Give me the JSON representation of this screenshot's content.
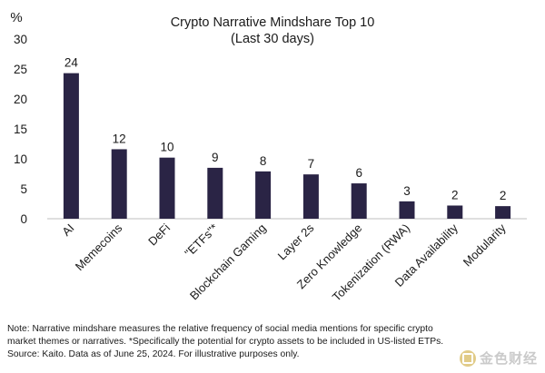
{
  "chart_data": {
    "type": "bar",
    "title": "Crypto Narrative Mindshare Top 10",
    "subtitle": "(Last 30 days)",
    "ylabel": "%",
    "xlabel": "",
    "ylim": [
      0,
      30
    ],
    "yticks": [
      0,
      5,
      10,
      15,
      20,
      25,
      30
    ],
    "categories": [
      "AI",
      "Memecoins",
      "DeFi",
      "\"ETFs\"*",
      "Blockchain Gaming",
      "Layer 2s",
      "Zero Knowledge",
      "Tokenization (RWA)",
      "Data Availability",
      "Modularity"
    ],
    "values": [
      24.3,
      11.6,
      10.2,
      8.5,
      7.9,
      7.4,
      5.9,
      2.9,
      2.2,
      2.1
    ],
    "data_labels": [
      "24",
      "12",
      "10",
      "9",
      "8",
      "7",
      "6",
      "3",
      "2",
      "2"
    ],
    "bar_color": "#2a2445",
    "grid": false,
    "legend": "none"
  },
  "notes": {
    "line1": "Note: Narrative mindshare measures the relative frequency of social media mentions for specific crypto",
    "line2": "market themes or narratives. *Specifically the potential for crypto assets to be included in US-listed ETPs.",
    "line3": "Source: Kaito. Data as of June 25, 2024. For illustrative purposes only."
  },
  "watermark": {
    "text": "金色财经",
    "icon": "coin-logo-icon"
  }
}
